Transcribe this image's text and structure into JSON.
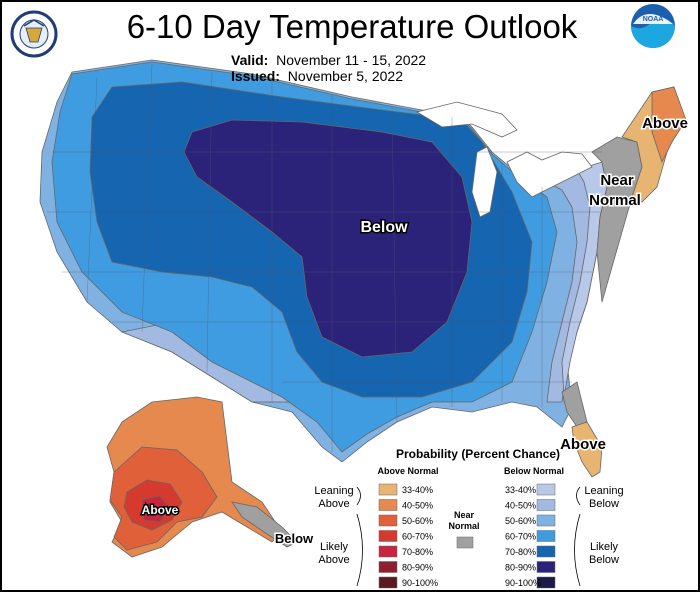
{
  "header": {
    "title": "6-10 Day Temperature Outlook",
    "valid_label": "Valid:",
    "valid_value": "November 11 - 15, 2022",
    "issued_label": "Issued:",
    "issued_value": "November 5, 2022"
  },
  "logos": {
    "left": "commerce-seal",
    "right": "noaa-logo"
  },
  "map_labels": {
    "below_central": "Below",
    "above_ne": "Above",
    "near_normal_line1": "Near",
    "near_normal_line2": "Normal",
    "above_fl": "Above",
    "above_ak": "Above",
    "below_ak": "Below"
  },
  "legend": {
    "title": "Probability (Percent Chance)",
    "above_header": "Above Normal",
    "below_header": "Below Normal",
    "near_label_1": "Near",
    "near_label_2": "Normal",
    "leaning_above_1": "Leaning",
    "leaning_above_2": "Above",
    "likely_above_1": "Likely",
    "likely_above_2": "Above",
    "leaning_below_1": "Leaning",
    "leaning_below_2": "Below",
    "likely_below_1": "Likely",
    "likely_below_2": "Below",
    "above": [
      {
        "range": "33-40%",
        "color": "#e8b472"
      },
      {
        "range": "40-50%",
        "color": "#e5894e"
      },
      {
        "range": "50-60%",
        "color": "#e0603a"
      },
      {
        "range": "60-70%",
        "color": "#d63a2e"
      },
      {
        "range": "70-80%",
        "color": "#c8253f"
      },
      {
        "range": "80-90%",
        "color": "#8e1f2e"
      },
      {
        "range": "90-100%",
        "color": "#5a1a22"
      }
    ],
    "below": [
      {
        "range": "33-40%",
        "color": "#b8c8e8"
      },
      {
        "range": "40-50%",
        "color": "#a2b9e2"
      },
      {
        "range": "50-60%",
        "color": "#7fb2e2"
      },
      {
        "range": "60-70%",
        "color": "#3f9ce0"
      },
      {
        "range": "70-80%",
        "color": "#1565b0"
      },
      {
        "range": "80-90%",
        "color": "#2b237a"
      },
      {
        "range": "90-100%",
        "color": "#1d1a4a"
      }
    ],
    "near_color": "#a0a0a0"
  }
}
